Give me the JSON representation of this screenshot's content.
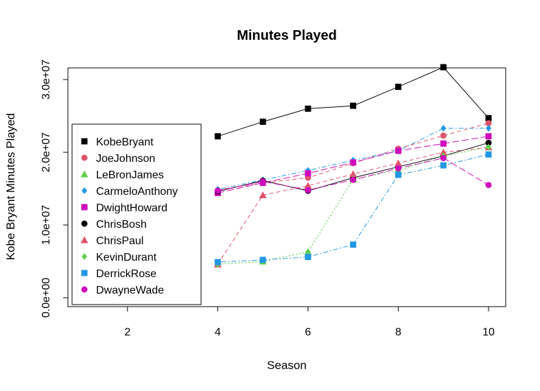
{
  "chart_data": {
    "type": "line",
    "title": "Minutes Played",
    "xlabel": "Season",
    "ylabel": "Kobe Bryant Minutes Played",
    "xlim": [
      1,
      10
    ],
    "ylim": [
      0,
      30000000
    ],
    "x_ticks": [
      2,
      4,
      6,
      8,
      10
    ],
    "y_ticks": [
      0,
      10000000,
      20000000,
      30000000
    ],
    "y_tick_labels": [
      "0.0e+00",
      "1.0e+07",
      "2.0e+07",
      "3.0e+07"
    ],
    "legend_position": "left",
    "series": [
      {
        "name": "KobeBryant",
        "color": "#000000",
        "marker": "square",
        "dash": "solid",
        "x": [
          4,
          5,
          6,
          7,
          8,
          9,
          10
        ],
        "y": [
          22200000,
          24200000,
          26000000,
          26400000,
          29000000,
          31700000,
          24700000
        ]
      },
      {
        "name": "JoeJohnson",
        "color": "#DF536B",
        "marker": "circle",
        "dash": "dashed",
        "x": [
          4,
          5,
          6,
          7,
          8,
          9,
          10
        ],
        "y": [
          14800000,
          15800000,
          16500000,
          18500000,
          20500000,
          22300000,
          24000000
        ]
      },
      {
        "name": "LeBronJames",
        "color": "#61D04F",
        "marker": "triangle",
        "dash": "dotted",
        "x": [
          4,
          5,
          6,
          7,
          8,
          9,
          10
        ],
        "y": [
          4600000,
          5000000,
          6300000,
          16300000,
          17500000,
          19500000,
          20700000
        ]
      },
      {
        "name": "CarmeloAnthony",
        "color": "#2297E6",
        "marker": "diamond",
        "dash": "dotdash",
        "x": [
          4,
          5,
          6,
          7,
          8,
          9,
          10
        ],
        "y": [
          14900000,
          16200000,
          17500000,
          18900000,
          20200000,
          23300000,
          23300000
        ]
      },
      {
        "name": "DwightHoward",
        "color": "#CD0BBC",
        "marker": "square",
        "dash": "longdash",
        "x": [
          4,
          5,
          6,
          7,
          8,
          9,
          10
        ],
        "y": [
          14400000,
          15800000,
          17100000,
          18600000,
          20200000,
          21200000,
          22200000
        ]
      },
      {
        "name": "ChrisBosh",
        "color": "#000000",
        "marker": "circle",
        "dash": "solid",
        "x": [
          4,
          5,
          6,
          7,
          8,
          9,
          10
        ],
        "y": [
          14600000,
          16100000,
          14700000,
          16500000,
          18000000,
          19500000,
          21300000
        ]
      },
      {
        "name": "ChrisPaul",
        "color": "#DF536B",
        "marker": "triangle",
        "dash": "dashed",
        "x": [
          4,
          5,
          6,
          7,
          8,
          9,
          10
        ],
        "y": [
          4600000,
          14100000,
          15400000,
          17000000,
          18500000,
          20000000,
          20700000
        ]
      },
      {
        "name": "KevinDurant",
        "color": "#61D04F",
        "marker": "diamond",
        "dash": "dotted",
        "x": [
          4,
          5,
          6,
          7,
          8,
          9,
          10
        ],
        "y": [
          4600000,
          5000000,
          6300000,
          16300000,
          17500000,
          19500000,
          20700000
        ]
      },
      {
        "name": "DerrickRose",
        "color": "#2297E6",
        "marker": "square",
        "dash": "dotdash",
        "x": [
          4,
          5,
          6,
          7,
          8,
          9,
          10
        ],
        "y": [
          4900000,
          5200000,
          5600000,
          7300000,
          16900000,
          18200000,
          19700000
        ]
      },
      {
        "name": "DwayneWade",
        "color": "#CD0BBC",
        "marker": "circle",
        "dash": "longdash",
        "x": [
          4,
          5,
          6,
          7,
          8,
          9,
          10
        ],
        "y": [
          14700000,
          16000000,
          14800000,
          16200000,
          17800000,
          19200000,
          15500000
        ]
      }
    ]
  }
}
